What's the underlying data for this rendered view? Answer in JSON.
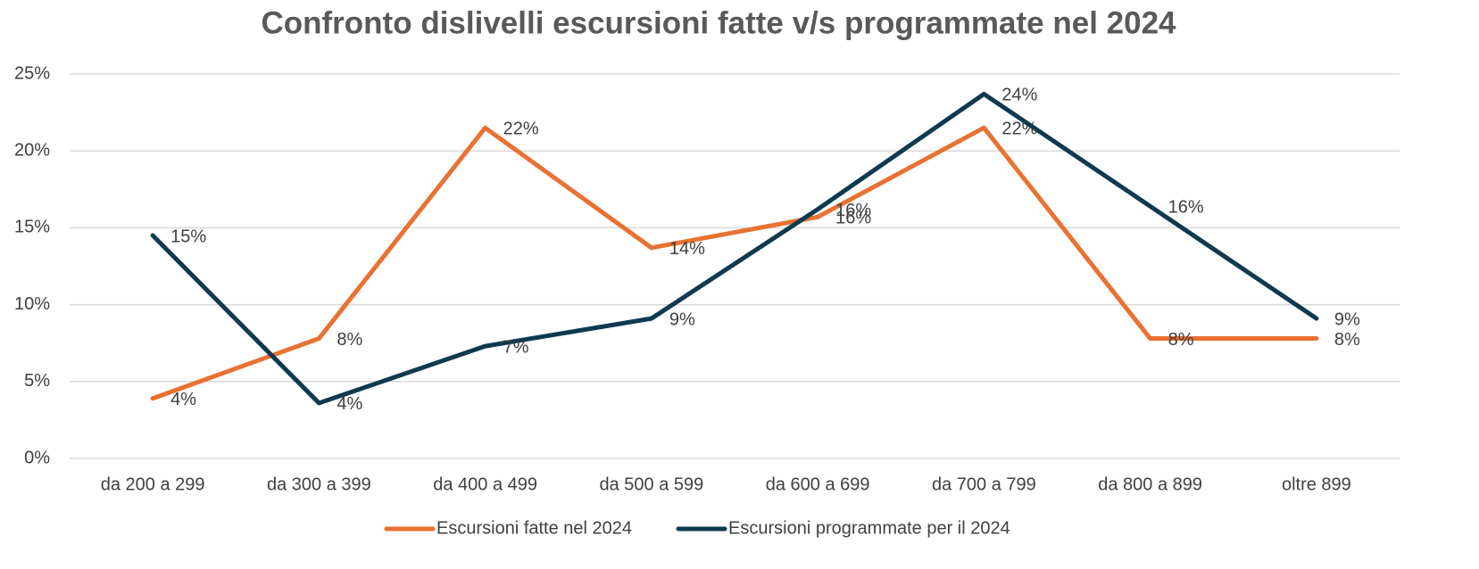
{
  "chart_data": {
    "type": "line",
    "title": "Confronto dislivelli escursioni fatte v/s programmate nel 2024",
    "categories": [
      "da 200 a 299",
      "da 300 a 399",
      "da 400 a 499",
      "da 500 a 599",
      "da 600 a 699",
      "da 700 a 799",
      "da 800 a 899",
      "oltre 899"
    ],
    "series": [
      {
        "name": "Escursioni fatte nel 2024",
        "color": "#e97132",
        "values": [
          3.9,
          7.8,
          21.5,
          13.7,
          15.7,
          21.5,
          7.8,
          7.8
        ],
        "value_labels": [
          "4%",
          "8%",
          "22%",
          "14%",
          "16%",
          "22%",
          "8%",
          "8%"
        ]
      },
      {
        "name": "Escursioni programmate per il 2024",
        "color": "#0e3a4f",
        "values": [
          14.5,
          3.6,
          7.3,
          9.1,
          16.2,
          23.7,
          16.4,
          9.1
        ],
        "value_labels": [
          "15%",
          "4%",
          "7%",
          "9%",
          "16%",
          "24%",
          "16%",
          "9%"
        ]
      }
    ],
    "ylim": [
      0,
      25
    ],
    "yticks": [
      {
        "value": 0,
        "label": "0%"
      },
      {
        "value": 5,
        "label": "5%"
      },
      {
        "value": 10,
        "label": "10%"
      },
      {
        "value": 15,
        "label": "15%"
      },
      {
        "value": 20,
        "label": "20%"
      },
      {
        "value": 25,
        "label": "25%"
      }
    ],
    "grid": true,
    "legend": "bottom"
  }
}
